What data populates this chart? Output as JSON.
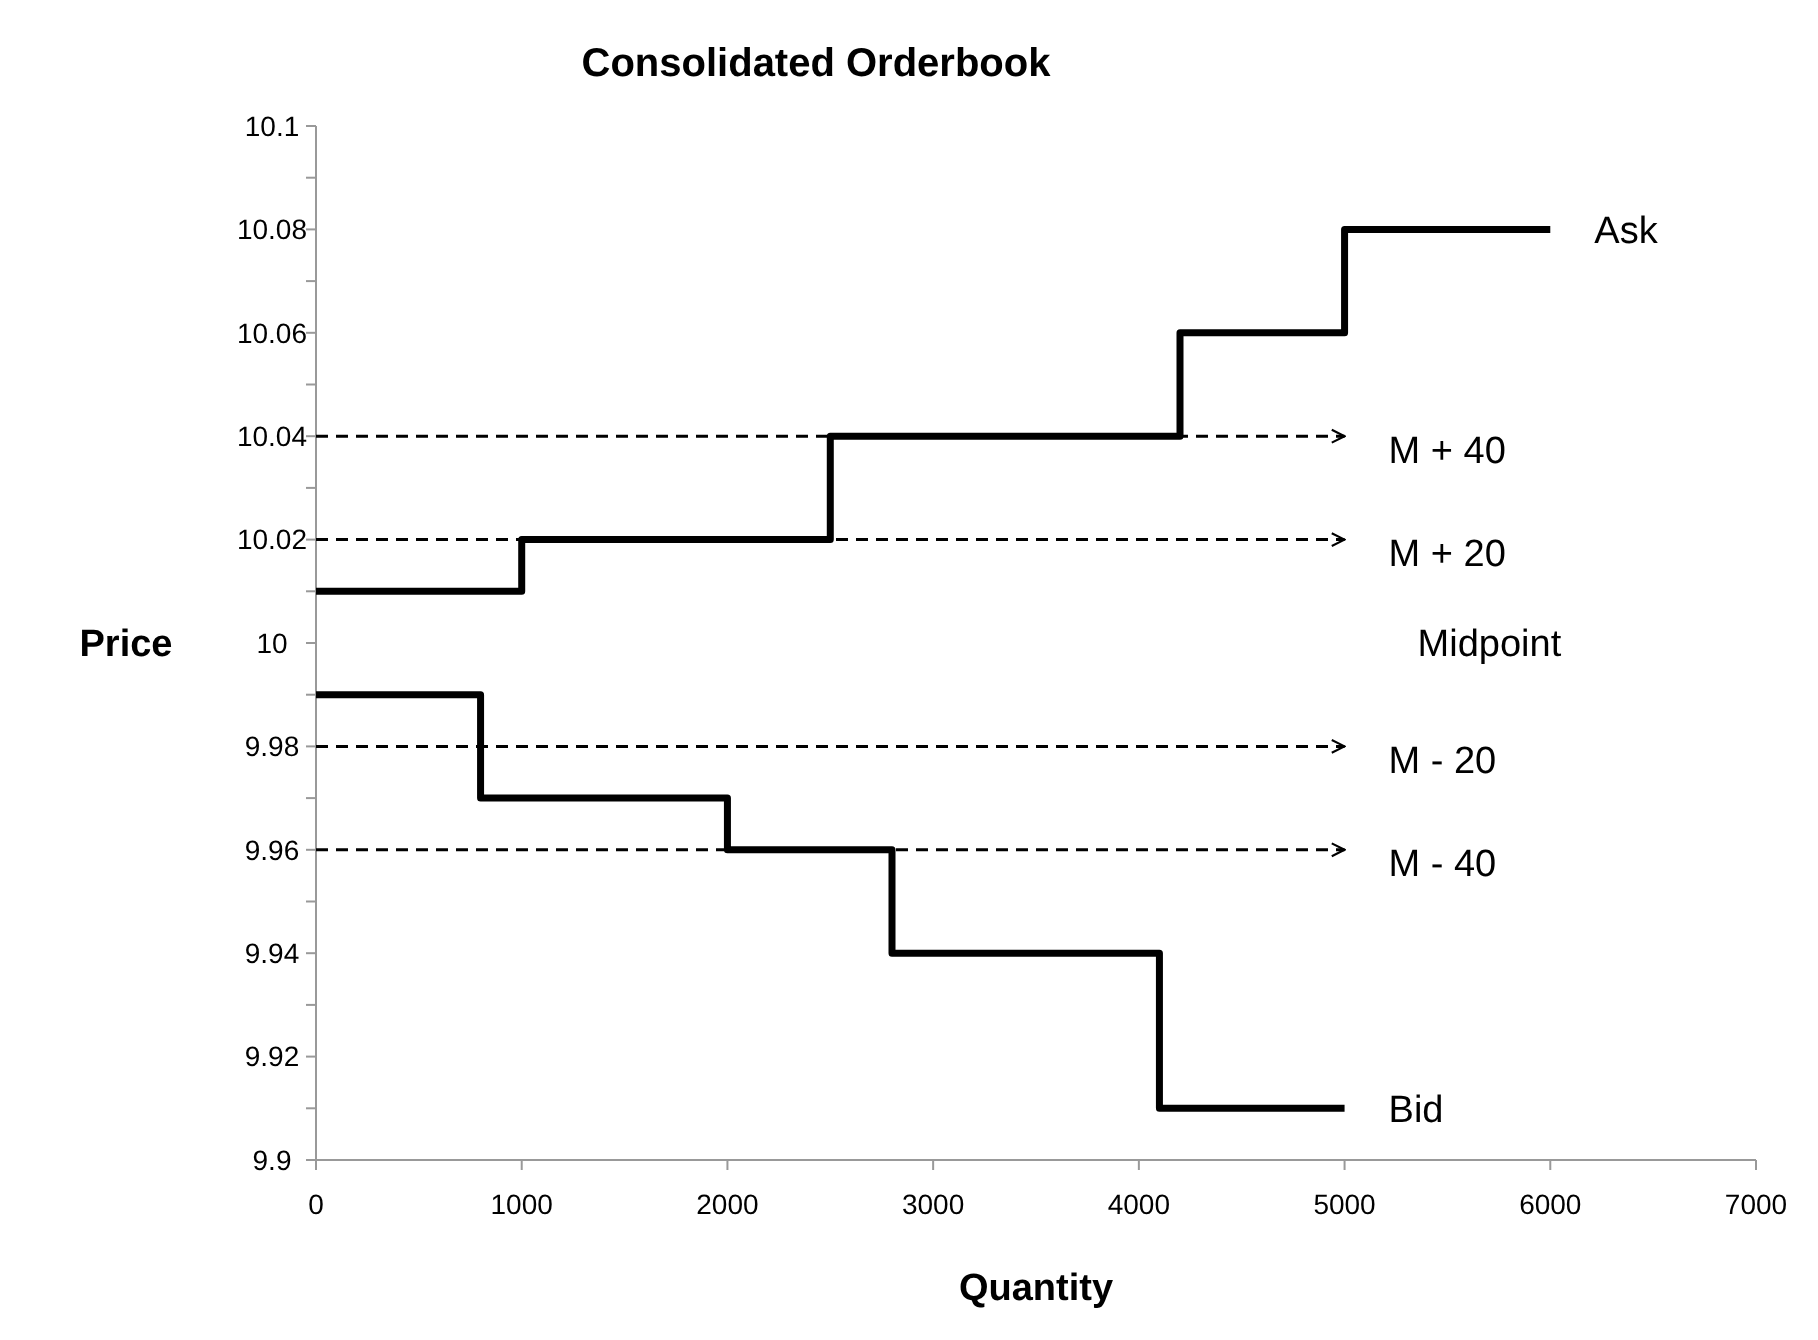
{
  "chart_data": {
    "type": "step",
    "title": "Consolidated Orderbook",
    "xlabel": "Quantity",
    "ylabel": "Price",
    "xlim": [
      0,
      7000
    ],
    "xticks": [
      0,
      1000,
      2000,
      3000,
      4000,
      5000,
      6000,
      7000
    ],
    "ylim": [
      9.9,
      10.1
    ],
    "yticks": [
      9.9,
      {
        "value": 9.91,
        "label": null
      },
      9.92,
      {
        "value": 9.93,
        "label": null
      },
      9.94,
      {
        "value": 9.95,
        "label": null
      },
      9.96,
      {
        "value": 9.97,
        "label": null
      },
      9.98,
      {
        "value": 9.99,
        "label": null
      },
      10,
      {
        "value": 10.01,
        "label": null
      },
      10.02,
      {
        "value": 10.03,
        "label": null
      },
      10.04,
      {
        "value": 10.05,
        "label": null
      },
      10.06,
      {
        "value": 10.07,
        "label": null
      },
      10.08,
      {
        "value": 10.09,
        "label": null
      },
      10.1
    ],
    "grid": false,
    "series": [
      {
        "name": "Ask",
        "color": "#000000",
        "x": [
          0,
          1000,
          2500,
          4200,
          5000,
          6000
        ],
        "values": [
          10.01,
          10.02,
          10.04,
          10.06,
          10.08,
          10.08
        ]
      },
      {
        "name": "Bid",
        "color": "#000000",
        "x": [
          0,
          800,
          2000,
          2800,
          4100,
          5000
        ],
        "values": [
          9.99,
          9.97,
          9.96,
          9.94,
          9.91,
          9.91
        ]
      },
      {
        "name": "M + 40",
        "type": "line",
        "line_style": "dashed",
        "color": "#000000",
        "x": [
          0,
          5000
        ],
        "values": [
          10.04,
          10.04
        ]
      },
      {
        "name": "M + 20",
        "type": "line",
        "line_style": "dashed",
        "color": "#000000",
        "x": [
          0,
          5000
        ],
        "values": [
          10.02,
          10.02
        ]
      },
      {
        "name": "M - 20",
        "type": "line",
        "line_style": "dashed",
        "color": "#000000",
        "x": [
          0,
          5000
        ],
        "values": [
          9.98,
          9.98
        ]
      },
      {
        "name": "M - 40",
        "type": "line",
        "line_style": "dashed",
        "color": "#000000",
        "x": [
          0,
          5000
        ],
        "values": [
          9.96,
          9.96
        ]
      }
    ],
    "annotations": [
      "Midpoint"
    ]
  }
}
